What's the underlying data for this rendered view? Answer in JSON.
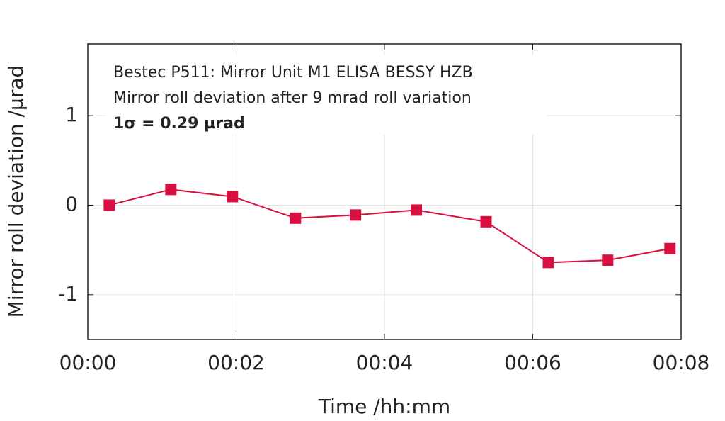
{
  "chart_data": {
    "type": "line",
    "annotations": [
      "Bestec P511: Mirror Unit M1 ELISA BESSY HZB",
      "Mirror roll deviation after 9 mrad roll variation",
      "1σ = 0.29 µrad"
    ],
    "xlabel": "Time /hh:mm",
    "ylabel": "Mirror roll deviation /µrad",
    "x": [
      0.29,
      1.12,
      1.95,
      2.8,
      3.61,
      4.43,
      5.37,
      6.21,
      7.01,
      7.85
    ],
    "values": [
      0,
      0.175,
      0.095,
      -0.145,
      -0.11,
      -0.055,
      -0.185,
      -0.64,
      -0.615,
      -0.485
    ],
    "color": "#d9103f",
    "xlim": [
      0,
      8
    ],
    "xticks": [
      {
        "value": 0,
        "label": "00:00"
      },
      {
        "value": 2,
        "label": "00:02"
      },
      {
        "value": 4,
        "label": "00:04"
      },
      {
        "value": 6,
        "label": "00:06"
      },
      {
        "value": 8,
        "label": "00:08"
      }
    ],
    "ylim": [
      -1.5,
      1.8
    ],
    "yticks": [
      -1,
      0,
      1
    ],
    "grid": true
  }
}
